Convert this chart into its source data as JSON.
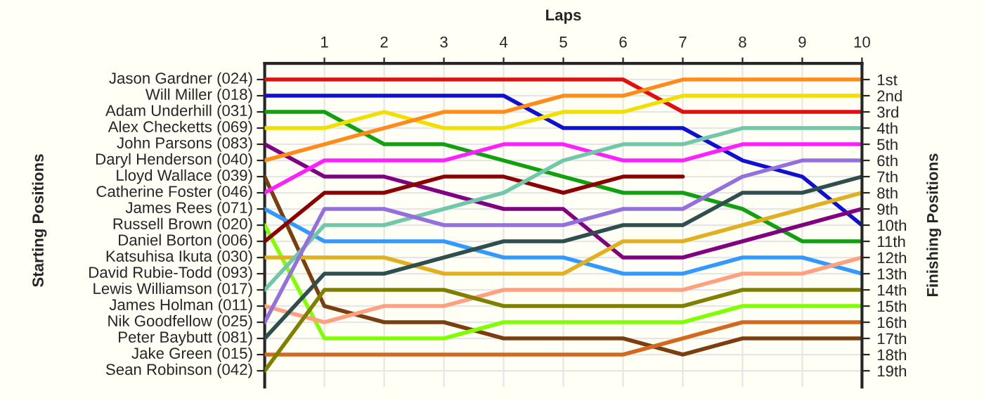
{
  "chart_data": {
    "type": "line",
    "xlabel": "Laps",
    "y2label": "Finishing Positions",
    "x": [
      0,
      1,
      2,
      3,
      4,
      5,
      6,
      7,
      8,
      9,
      10
    ],
    "xlim": [
      0,
      10
    ],
    "xticks": [
      1,
      2,
      3,
      4,
      5,
      6,
      7,
      8,
      9,
      10
    ],
    "y2lim": [
      20,
      0
    ],
    "y2ticks": [
      {
        "value": 1,
        "label": "1st"
      },
      {
        "value": 2,
        "label": "2nd"
      },
      {
        "value": 3,
        "label": "3rd"
      },
      {
        "value": 4,
        "label": "4th"
      },
      {
        "value": 5,
        "label": "5th"
      },
      {
        "value": 6,
        "label": "6th"
      },
      {
        "value": 7,
        "label": "7th"
      },
      {
        "value": 8,
        "label": "8th"
      },
      {
        "value": 9,
        "label": "9th"
      },
      {
        "value": 10,
        "label": "10th"
      },
      {
        "value": 11,
        "label": "11th"
      },
      {
        "value": 12,
        "label": "12th"
      },
      {
        "value": 13,
        "label": "13th"
      },
      {
        "value": 14,
        "label": "14th"
      },
      {
        "value": 15,
        "label": "15th"
      },
      {
        "value": 16,
        "label": "16th"
      },
      {
        "value": 17,
        "label": "17th"
      },
      {
        "value": 18,
        "label": "18th"
      },
      {
        "value": 19,
        "label": "19th"
      }
    ],
    "annotations": [
      "Jason Gardner (024)",
      "Will Miller (018)",
      "Adam Underhill (031)",
      "Alex Checketts (069)",
      "John Parsons (083)",
      "Daryl Henderson (040)",
      "Lloyd Wallace (039)",
      "Catherine Foster (046)",
      "James Rees (071)",
      "Russell Brown (020)",
      "Daniel Borton (006)",
      "Katsuhisa Ikuta (030)",
      "David Rubie-Todd (093)",
      "Lewis Williamson (017)",
      "James Holman (011)",
      "Nik Goodfellow (025)",
      "Peter Baybutt (081)",
      "Jake Green (015)",
      "Sean Robinson (042)",
      "Starting Positions"
    ],
    "grid": true,
    "marker": "none",
    "line_style": "solid",
    "series": [
      {
        "axis": "y2",
        "color": "#e01010",
        "values": [
          1,
          1,
          1,
          1,
          1,
          1,
          1,
          3,
          3,
          3,
          3
        ]
      },
      {
        "axis": "y2",
        "color": "#1010d0",
        "values": [
          2,
          2,
          2,
          2,
          2,
          4,
          4,
          4,
          6,
          7,
          10
        ]
      },
      {
        "axis": "y2",
        "color": "#10a010",
        "values": [
          3,
          3,
          5,
          5,
          6,
          7,
          8,
          8,
          9,
          11,
          11
        ]
      },
      {
        "axis": "y2",
        "color": "#f0e000",
        "values": [
          4,
          4,
          3,
          4,
          4,
          3,
          3,
          2,
          2,
          2,
          2
        ]
      },
      {
        "axis": "y2",
        "color": "#800080",
        "values": [
          5,
          7,
          7,
          8,
          9,
          9,
          12,
          12,
          11,
          10,
          9
        ]
      },
      {
        "axis": "y2",
        "color": "#ff8c1a",
        "values": [
          6,
          5,
          4,
          3,
          3,
          2,
          2,
          1,
          1,
          1,
          1
        ]
      },
      {
        "axis": "y2",
        "color": "#7a3e10",
        "values": [
          7,
          15,
          16,
          16,
          17,
          17,
          17,
          18,
          17,
          17,
          17
        ]
      },
      {
        "axis": "y2",
        "color": "#ff20ff",
        "values": [
          8,
          6,
          6,
          6,
          5,
          5,
          6,
          6,
          5,
          5,
          5
        ]
      },
      {
        "axis": "y2",
        "color": "#3399ff",
        "values": [
          9,
          11,
          11,
          11,
          12,
          12,
          13,
          13,
          12,
          12,
          13
        ]
      },
      {
        "axis": "y2",
        "color": "#80ff00",
        "values": [
          10,
          17,
          17,
          17,
          16,
          16,
          16,
          16,
          15,
          15,
          15
        ]
      },
      {
        "axis": "y2",
        "color": "#8b0000",
        "values": [
          11,
          8,
          8,
          7,
          7,
          8,
          7,
          7,
          null,
          null,
          null
        ]
      },
      {
        "axis": "y2",
        "color": "#e0b020",
        "values": [
          12,
          12,
          12,
          13,
          13,
          13,
          11,
          11,
          10,
          9,
          8
        ]
      },
      {
        "axis": "y2",
        "color": "#70c8a8",
        "values": [
          14,
          10,
          10,
          9,
          8,
          6,
          5,
          5,
          4,
          4,
          4
        ]
      },
      {
        "axis": "y2",
        "color": "#ffa080",
        "values": [
          15,
          16,
          15,
          15,
          14,
          14,
          14,
          14,
          13,
          13,
          12
        ]
      },
      {
        "axis": "y2",
        "color": "#9370db",
        "values": [
          16,
          9,
          9,
          10,
          10,
          10,
          9,
          9,
          7,
          6,
          6
        ]
      },
      {
        "axis": "y2",
        "color": "#2f4f4f",
        "values": [
          17,
          13,
          13,
          12,
          11,
          11,
          10,
          10,
          8,
          8,
          7
        ]
      },
      {
        "axis": "y2",
        "color": "#d2691e",
        "values": [
          18,
          18,
          18,
          18,
          18,
          18,
          18,
          17,
          16,
          16,
          16
        ]
      },
      {
        "axis": "y2",
        "color": "#808000",
        "values": [
          19,
          14,
          14,
          14,
          15,
          15,
          15,
          15,
          14,
          14,
          14
        ]
      }
    ]
  }
}
